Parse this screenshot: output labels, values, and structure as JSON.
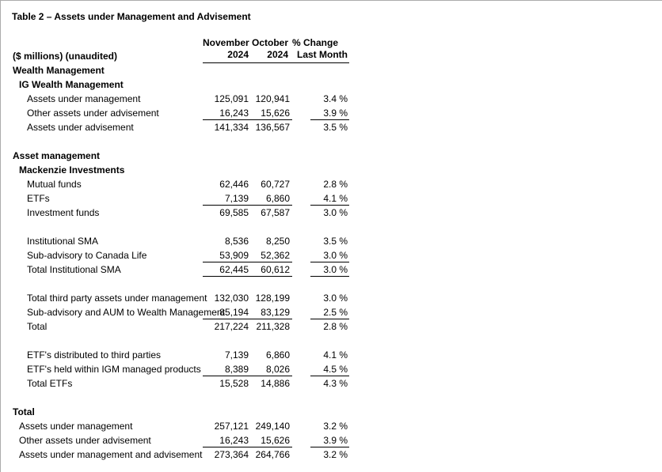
{
  "page": {
    "title": "Table 2 – Assets under Management and Advisement"
  },
  "table": {
    "unit_label": "($ millions) (unaudited)",
    "columns": {
      "november_line1": "November",
      "november_line2": "2024",
      "october_line1": "October",
      "october_line2": "2024",
      "pct_line1": "% Change",
      "pct_line2": "Last Month"
    },
    "rows": [
      {
        "type": "section",
        "label": "Wealth Management"
      },
      {
        "type": "subsection",
        "label": "IG Wealth Management"
      },
      {
        "type": "item",
        "label": "Assets under management",
        "nov": "125,091",
        "oct": "120,941",
        "pct": "3.4 %"
      },
      {
        "type": "item",
        "label": "Other assets under advisement",
        "nov": "16,243",
        "oct": "15,626",
        "pct": "3.9 %",
        "underline": true
      },
      {
        "type": "item",
        "label": "Assets under advisement",
        "nov": "141,334",
        "oct": "136,567",
        "pct": "3.5 %"
      },
      {
        "type": "spacer"
      },
      {
        "type": "section",
        "label": "Asset management"
      },
      {
        "type": "subsection",
        "label": "Mackenzie Investments"
      },
      {
        "type": "item",
        "label": "Mutual funds",
        "nov": "62,446",
        "oct": "60,727",
        "pct": "2.8 %"
      },
      {
        "type": "item",
        "label": "ETFs",
        "nov": "7,139",
        "oct": "6,860",
        "pct": "4.1 %",
        "underline": true
      },
      {
        "type": "item",
        "label": "Investment funds",
        "nov": "69,585",
        "oct": "67,587",
        "pct": "3.0 %"
      },
      {
        "type": "spacer"
      },
      {
        "type": "item",
        "label": "Institutional SMA",
        "nov": "8,536",
        "oct": "8,250",
        "pct": "3.5 %"
      },
      {
        "type": "item",
        "label": "Sub-advisory to Canada Life",
        "nov": "53,909",
        "oct": "52,362",
        "pct": "3.0 %",
        "underline": true
      },
      {
        "type": "item",
        "label": "Total Institutional SMA",
        "nov": "62,445",
        "oct": "60,612",
        "pct": "3.0 %",
        "underline": true
      },
      {
        "type": "spacer"
      },
      {
        "type": "item",
        "label": "Total third party assets under management",
        "nov": "132,030",
        "oct": "128,199",
        "pct": "3.0 %"
      },
      {
        "type": "item",
        "label": "Sub-advisory and AUM to Wealth Management",
        "nov": "85,194",
        "oct": "83,129",
        "pct": "2.5 %",
        "underline": true
      },
      {
        "type": "item",
        "label": "Total",
        "nov": "217,224",
        "oct": "211,328",
        "pct": "2.8 %"
      },
      {
        "type": "spacer"
      },
      {
        "type": "item",
        "label": "ETF's distributed to third parties",
        "nov": "7,139",
        "oct": "6,860",
        "pct": "4.1 %"
      },
      {
        "type": "item",
        "label": "ETF's held within IGM managed products",
        "nov": "8,389",
        "oct": "8,026",
        "pct": "4.5 %",
        "underline": true
      },
      {
        "type": "item",
        "label": "Total ETFs",
        "nov": "15,528",
        "oct": "14,886",
        "pct": "4.3 %"
      },
      {
        "type": "spacer"
      },
      {
        "type": "section",
        "label": "Total"
      },
      {
        "type": "item2",
        "label": "Assets under management",
        "nov": "257,121",
        "oct": "249,140",
        "pct": "3.2 %"
      },
      {
        "type": "item2",
        "label": "Other assets under advisement",
        "nov": "16,243",
        "oct": "15,626",
        "pct": "3.9 %",
        "underline": true
      },
      {
        "type": "item2",
        "label": "Assets under management and advisement",
        "nov": "273,364",
        "oct": "264,766",
        "pct": "3.2 %"
      }
    ]
  }
}
